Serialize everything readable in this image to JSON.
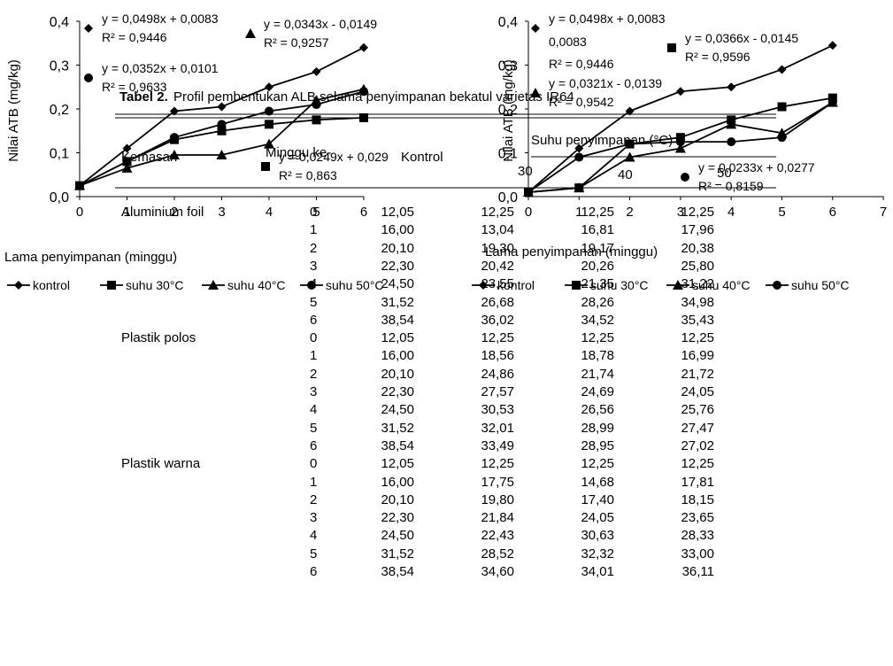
{
  "chart_data": [
    {
      "type": "line",
      "xlabel": "Lama penyimpanan (minggu)",
      "ylabel": "Nilai ATB (mg/kg)",
      "xlim": [
        0,
        6
      ],
      "ylim": [
        0,
        0.4
      ],
      "x_ticks": [
        "0",
        "1",
        "2",
        "3",
        "4",
        "5",
        "6"
      ],
      "y_ticks": [
        "0,0",
        "0,1",
        "0,2",
        "0,3",
        "0,4"
      ],
      "x": [
        0,
        1,
        2,
        3,
        4,
        5,
        6
      ],
      "series": [
        {
          "name": "kontrol",
          "marker": "diamond",
          "values": [
            0.025,
            0.11,
            0.195,
            0.205,
            0.25,
            0.285,
            0.34
          ]
        },
        {
          "name": "suhu 30oC",
          "marker": "square",
          "values": [
            0.025,
            0.08,
            0.13,
            0.15,
            0.165,
            0.175,
            0.18
          ]
        },
        {
          "name": "suhu 40oC",
          "marker": "triangle",
          "values": [
            0.025,
            0.065,
            0.095,
            0.095,
            0.12,
            0.22,
            0.245
          ]
        },
        {
          "name": "suhu 50oC",
          "marker": "circle",
          "values": [
            0.025,
            0.08,
            0.135,
            0.165,
            0.195,
            0.21,
            0.24
          ]
        }
      ],
      "equations": [
        {
          "marker": "diamond",
          "eq": "y = 0,0498x + 0,0083",
          "r2": "R² = 0,9446"
        },
        {
          "marker": "triangle",
          "eq": "y = 0,0343x - 0,0149",
          "r2": "R² = 0,9257"
        },
        {
          "marker": "circle",
          "eq": "y = 0,0352x + 0,0101",
          "r2": "R² = 0,9633"
        },
        {
          "marker": "square",
          "eq": "y = 0,0249x + 0,029",
          "r2": "R² = 0,863"
        }
      ]
    },
    {
      "type": "line",
      "xlabel": "Lama penyimpanan (minggu)",
      "ylabel": "Nilai ATB (mg/kg)",
      "xlim": [
        0,
        7
      ],
      "ylim": [
        0,
        0.4
      ],
      "x_ticks": [
        "0",
        "1",
        "2",
        "3",
        "4",
        "5",
        "6",
        "7"
      ],
      "y_ticks": [
        "0,0",
        "0,1",
        "0,2",
        "0,3",
        "0,4"
      ],
      "x": [
        0,
        1,
        2,
        3,
        4,
        5,
        6
      ],
      "series": [
        {
          "name": "kontrol",
          "marker": "diamond",
          "values": [
            0.01,
            0.11,
            0.195,
            0.24,
            0.25,
            0.29,
            0.345
          ]
        },
        {
          "name": "suhu 30oC",
          "marker": "square",
          "values": [
            0.01,
            0.02,
            0.12,
            0.135,
            0.175,
            0.205,
            0.225
          ]
        },
        {
          "name": "suhu 40oC",
          "marker": "triangle",
          "values": [
            0.01,
            0.02,
            0.09,
            0.11,
            0.165,
            0.145,
            0.215
          ]
        },
        {
          "name": "suhu 50oC",
          "marker": "circle",
          "values": [
            0.01,
            0.09,
            0.12,
            0.125,
            0.125,
            0.135,
            0.215
          ]
        }
      ],
      "equations": [
        {
          "marker": "diamond",
          "eq": "y = 0,0498x + 0,0083",
          "extra": "0,0083",
          "r2": "R² = 0,9446"
        },
        {
          "marker": "square",
          "eq": "y = 0,0366x - 0,0145",
          "r2": "R² = 0,9596"
        },
        {
          "marker": "triangle",
          "eq": "y = 0,0321x - 0,0139",
          "r2": "R² = 0,9542"
        },
        {
          "marker": "circle",
          "eq": "y = 0,0233x + 0,0277",
          "r2": "R² = 0,8159"
        }
      ]
    }
  ],
  "table": {
    "caption_label": "Tabel 2.",
    "caption_text": "Profil pembentukan ALB selama penyimpanan bekatul varietas IR64",
    "headers": {
      "kemasan": "Kemasan",
      "minggu": "Minggu ke-",
      "kontrol": "Kontrol",
      "suhu": "Suhu penyimpanan (°C)",
      "s30": "30",
      "s40": "40",
      "s50": "50"
    },
    "groups": [
      {
        "name": "Aluminium foil",
        "rows": [
          [
            "0",
            "12,05",
            "12,25",
            "12,25",
            "12,25"
          ],
          [
            "1",
            "16,00",
            "13,04",
            "16,81",
            "17,96"
          ],
          [
            "2",
            "20,10",
            "19,30",
            "19,17",
            "20,38"
          ],
          [
            "3",
            "22,30",
            "20,42",
            "20,26",
            "25,80"
          ],
          [
            "4",
            "24,50",
            "23,55",
            "21,35",
            "31,22"
          ],
          [
            "5",
            "31,52",
            "26,68",
            "28,26",
            "34,98"
          ],
          [
            "6",
            "38,54",
            "36,02",
            "34,52",
            "35,43"
          ]
        ]
      },
      {
        "name": "Plastik polos",
        "rows": [
          [
            "0",
            "12,05",
            "12,25",
            "12,25",
            "12,25"
          ],
          [
            "1",
            "16,00",
            "18,56",
            "18,78",
            "16,99"
          ],
          [
            "2",
            "20,10",
            "24,86",
            "21,74",
            "21,72"
          ],
          [
            "3",
            "22,30",
            "27,57",
            "24,69",
            "24,05"
          ],
          [
            "4",
            "24,50",
            "30,53",
            "26,56",
            "25,76"
          ],
          [
            "5",
            "31,52",
            "32,01",
            "28,99",
            "27,47"
          ],
          [
            "6",
            "38,54",
            "33,49",
            "28,95",
            "27,02"
          ]
        ]
      },
      {
        "name": "Plastik warna",
        "rows": [
          [
            "0",
            "12,05",
            "12,25",
            "12,25",
            "12,25"
          ],
          [
            "1",
            "16,00",
            "17,75",
            "14,68",
            "17,81"
          ],
          [
            "2",
            "20,10",
            "19,80",
            "17,40",
            "18,15"
          ],
          [
            "3",
            "22,30",
            "21,84",
            "24,05",
            "23,65"
          ],
          [
            "4",
            "24,50",
            "22,43",
            "30,63",
            "28,33"
          ],
          [
            "5",
            "31,52",
            "28,52",
            "32,32",
            "33,00"
          ],
          [
            "6",
            "38,54",
            "34,60",
            "34,01",
            "36,11"
          ]
        ]
      }
    ]
  }
}
